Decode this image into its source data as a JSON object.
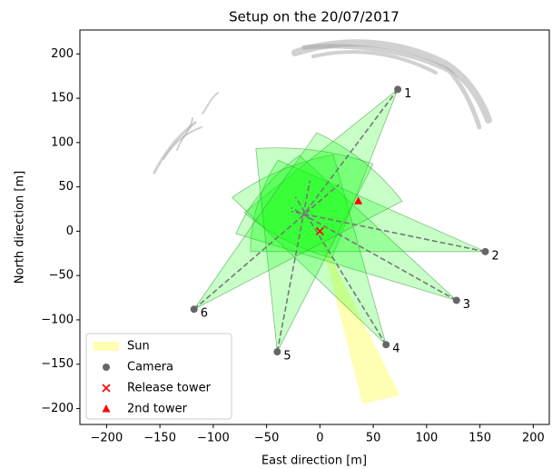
{
  "chart_data": {
    "type": "scatter",
    "title": "Setup on the 20/07/2017",
    "x_label": "East direction [m]",
    "y_label": "North direction [m]",
    "xlim": [
      -225,
      215
    ],
    "ylim": [
      -218,
      227
    ],
    "xticks": [
      {
        "value": -200,
        "label": "−200"
      },
      {
        "value": -150,
        "label": "−150"
      },
      {
        "value": -100,
        "label": "−100"
      },
      {
        "value": -50,
        "label": "−50"
      },
      0,
      50,
      100,
      150,
      200
    ],
    "yticks": [
      {
        "value": -200,
        "label": "−200"
      },
      {
        "value": -150,
        "label": "−150"
      },
      {
        "value": -100,
        "label": "−100"
      },
      {
        "value": -50,
        "label": "−50"
      },
      0,
      50,
      100,
      150,
      200
    ],
    "legend": "lower left",
    "sun": {
      "name": "Sun",
      "color": "#ffff99",
      "x": [
        0,
        40,
        75
      ],
      "y": [
        -5,
        -195,
        -185
      ]
    },
    "series": [
      {
        "name": "Camera",
        "color": "#666666",
        "marker": "circle",
        "x": [
          73,
          155,
          128,
          62,
          -40,
          -118
        ],
        "y": [
          160,
          -23,
          -78,
          -128,
          -136,
          -88
        ],
        "labels": [
          "1",
          "2",
          "3",
          "4",
          "5",
          "6"
        ],
        "heading": [
          238,
          166,
          146,
          117,
          81,
          46
        ],
        "half_angle": [
          14,
          14,
          14,
          14,
          14,
          14
        ],
        "range": [
          200,
          220,
          220,
          220,
          230,
          230
        ],
        "fov_color": "#00ff00"
      },
      {
        "name": "Release tower",
        "color": "#ff0000",
        "marker": "x",
        "x": [
          0
        ],
        "y": [
          0
        ]
      },
      {
        "name": "2nd tower",
        "color": "#ff0000",
        "marker": "triangle",
        "x": [
          36
        ],
        "y": [
          34
        ]
      }
    ]
  }
}
